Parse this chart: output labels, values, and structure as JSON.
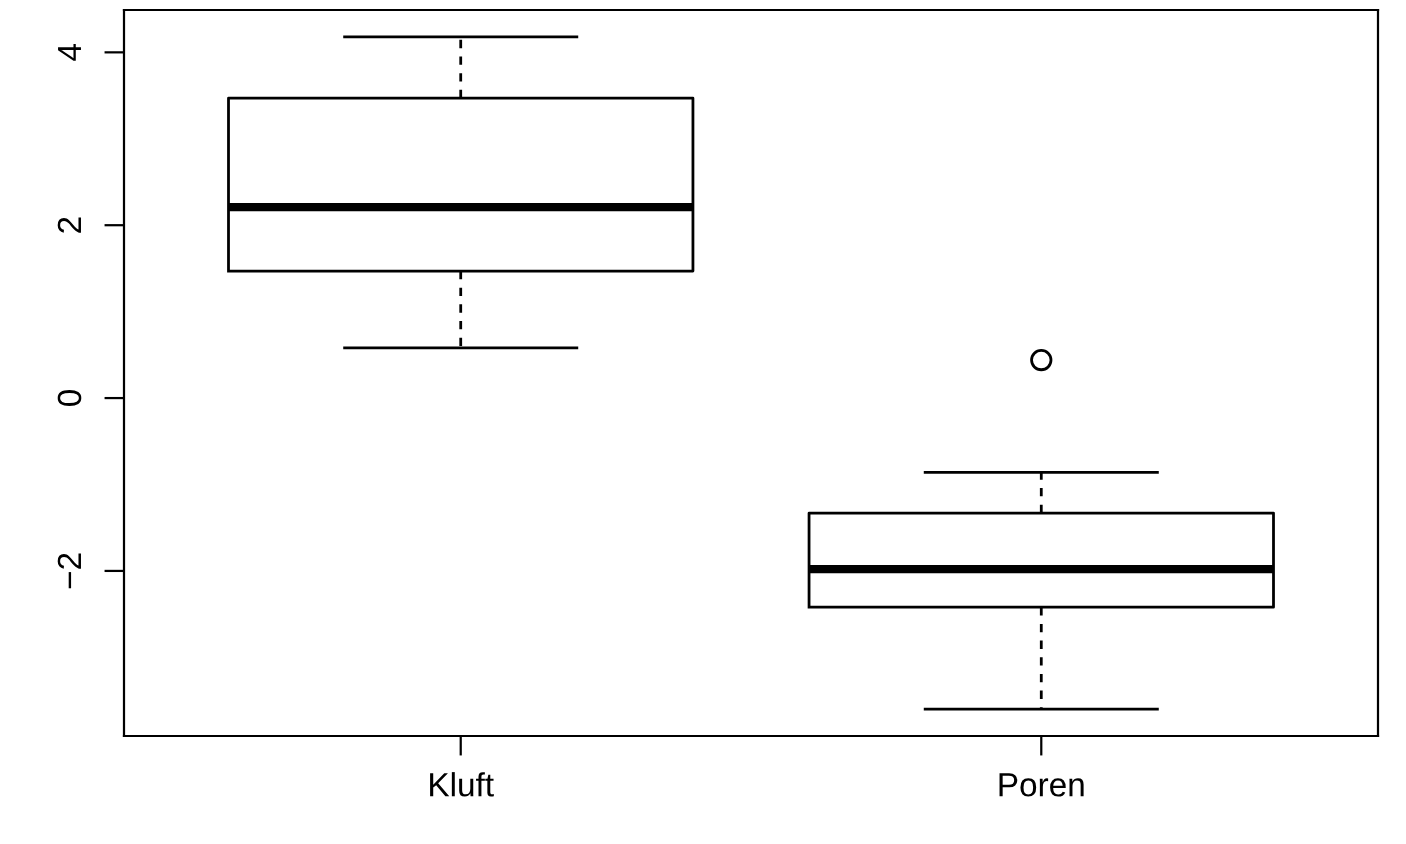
{
  "chart_data": {
    "type": "box",
    "categories": [
      "Kluft",
      "Poren"
    ],
    "boxes": [
      {
        "low": 0.58,
        "q1": 1.47,
        "median": 2.21,
        "q3": 3.47,
        "high": 4.18
      },
      {
        "low": -3.6,
        "q1": -2.42,
        "median": -1.98,
        "q3": -1.33,
        "high": -0.86,
        "outliers": [
          0.44
        ]
      }
    ],
    "ylim": [
      -3.91,
      4.49
    ],
    "yticks": [
      {
        "value": -2,
        "label": "−2"
      },
      0,
      2,
      4
    ],
    "grid": false
  }
}
